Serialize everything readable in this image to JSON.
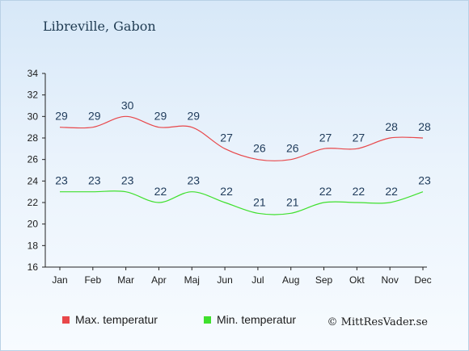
{
  "chart_data": {
    "type": "line",
    "title": "Libreville, Gabon",
    "xlabel": "",
    "ylabel": "",
    "categories": [
      "Jan",
      "Feb",
      "Mar",
      "Apr",
      "Maj",
      "Jun",
      "Jul",
      "Aug",
      "Sep",
      "Okt",
      "Nov",
      "Dec"
    ],
    "ylim": [
      16,
      34
    ],
    "yticks": [
      16,
      18,
      20,
      22,
      24,
      26,
      28,
      30,
      32,
      34
    ],
    "grid": false,
    "legend_position": "bottom",
    "series": [
      {
        "name": "Max. temperatur",
        "color": "#e8474a",
        "values": [
          29,
          29,
          30,
          29,
          29,
          27,
          26,
          26,
          27,
          27,
          28,
          28
        ]
      },
      {
        "name": "Min. temperatur",
        "color": "#3fe02d",
        "values": [
          23,
          23,
          23,
          22,
          23,
          22,
          21,
          21,
          22,
          22,
          22,
          23
        ]
      }
    ]
  },
  "credit": "© MittResVader.se"
}
